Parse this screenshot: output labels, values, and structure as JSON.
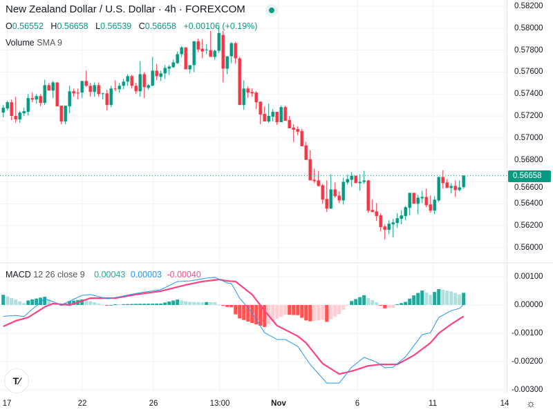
{
  "header": {
    "title": "New Zealand Dollar / U.S. Dollar · 4h · FOREXCOM",
    "ohlc": {
      "o_label": "O",
      "o": "0.56552",
      "h_label": "H",
      "h": "0.56658",
      "l_label": "L",
      "l": "0.56539",
      "c_label": "C",
      "c": "0.56658",
      "change": "+0.00106 (+0.19%)"
    },
    "volume_label": "Volume",
    "volume_sma": "SMA 9",
    "macd_label": "MACD",
    "macd_params": "12 26 close 9",
    "macd_hist_value": "0.00043",
    "macd_value": "0.00003",
    "macd_signal_value": "-0.00040"
  },
  "price_axis": [
    "0.58200",
    "0.58000",
    "0.57800",
    "0.57600",
    "0.57400",
    "0.57200",
    "0.57000",
    "0.56800",
    "0.56600",
    "0.56400",
    "0.56200",
    "0.56000"
  ],
  "last_price_label": "0.56658",
  "macd_axis": [
    "0.00100",
    "0.00000",
    "-0.00100",
    "-0.00200",
    "-0.00300"
  ],
  "time_axis": [
    "17",
    "22",
    "26",
    "13:00",
    "Nov",
    "6",
    "11",
    "14"
  ],
  "logo_text": "TV",
  "colors": {
    "up": "#089981",
    "down": "#f23645",
    "macd": "#2196f3",
    "signal": "#ff4081",
    "hist_up_strong": "#26a69a",
    "hist_up_weak": "#b2dfdb",
    "hist_down_strong": "#ff5252",
    "hist_down_weak": "#ffcdd2"
  },
  "chart_data": {
    "type": "candlestick",
    "title": "New Zealand Dollar / U.S. Dollar · 4h · FOREXCOM",
    "ylim": [
      0.56,
      0.582
    ],
    "last_close": 0.56658,
    "ohlc": [
      [
        0.57231,
        0.573,
        0.57188,
        0.57275
      ],
      [
        0.57269,
        0.57338,
        0.5725,
        0.57325
      ],
      [
        0.57325,
        0.5735,
        0.57163,
        0.572
      ],
      [
        0.572,
        0.57375,
        0.57138,
        0.57169
      ],
      [
        0.57169,
        0.57244,
        0.57138,
        0.57231
      ],
      [
        0.57225,
        0.57275,
        0.572,
        0.57244
      ],
      [
        0.57238,
        0.574,
        0.57206,
        0.57363
      ],
      [
        0.57363,
        0.57413,
        0.57325,
        0.5735
      ],
      [
        0.5735,
        0.574,
        0.57313,
        0.57381
      ],
      [
        0.57381,
        0.574,
        0.57288,
        0.57319
      ],
      [
        0.57319,
        0.57531,
        0.573,
        0.57481
      ],
      [
        0.57481,
        0.575,
        0.57431,
        0.57431
      ],
      [
        0.57431,
        0.57519,
        0.57363,
        0.57506
      ],
      [
        0.57506,
        0.57506,
        0.57288,
        0.57288
      ],
      [
        0.57294,
        0.57294,
        0.57125,
        0.5715
      ],
      [
        0.5715,
        0.57294,
        0.57125,
        0.57294
      ],
      [
        0.57288,
        0.57475,
        0.57225,
        0.57425
      ],
      [
        0.57425,
        0.5745,
        0.57375,
        0.57406
      ],
      [
        0.57413,
        0.5745,
        0.5735,
        0.57406
      ],
      [
        0.57413,
        0.57519,
        0.57363,
        0.57519
      ],
      [
        0.57519,
        0.57613,
        0.57463,
        0.57475
      ],
      [
        0.57475,
        0.575,
        0.57375,
        0.57419
      ],
      [
        0.57419,
        0.57506,
        0.57375,
        0.57481
      ],
      [
        0.57481,
        0.57506,
        0.57375,
        0.574
      ],
      [
        0.574,
        0.57413,
        0.5735,
        0.57406
      ],
      [
        0.57406,
        0.57438,
        0.5725,
        0.573
      ],
      [
        0.573,
        0.57475,
        0.57281,
        0.5745
      ],
      [
        0.5745,
        0.57525,
        0.57425,
        0.57444
      ],
      [
        0.57444,
        0.575,
        0.57413,
        0.57475
      ],
      [
        0.57475,
        0.57538,
        0.57444,
        0.57513
      ],
      [
        0.57513,
        0.57581,
        0.57475,
        0.57563
      ],
      [
        0.57563,
        0.57575,
        0.5745,
        0.57475
      ],
      [
        0.57475,
        0.575,
        0.574,
        0.57425
      ],
      [
        0.57425,
        0.577,
        0.57375,
        0.57581
      ],
      [
        0.57581,
        0.576,
        0.57363,
        0.57463
      ],
      [
        0.57456,
        0.57488,
        0.57438,
        0.57481
      ],
      [
        0.57475,
        0.57738,
        0.57475,
        0.57613
      ],
      [
        0.57613,
        0.57675,
        0.57525,
        0.57563
      ],
      [
        0.57556,
        0.57613,
        0.57519,
        0.57588
      ],
      [
        0.57588,
        0.57663,
        0.57538,
        0.57638
      ],
      [
        0.57631,
        0.57663,
        0.57575,
        0.5765
      ],
      [
        0.57644,
        0.57713,
        0.57638,
        0.57688
      ],
      [
        0.57681,
        0.57788,
        0.57675,
        0.57763
      ],
      [
        0.57763,
        0.57838,
        0.57738,
        0.57825
      ],
      [
        0.57825,
        0.57825,
        0.57625,
        0.57625
      ],
      [
        0.57625,
        0.57663,
        0.57588,
        0.57663
      ],
      [
        0.57663,
        0.57881,
        0.576,
        0.57881
      ],
      [
        0.57881,
        0.57906,
        0.57781,
        0.57806
      ],
      [
        0.57813,
        0.579,
        0.57725,
        0.57788
      ],
      [
        0.578,
        0.57856,
        0.57763,
        0.57806
      ],
      [
        0.578,
        0.57975,
        0.57738,
        0.57738
      ],
      [
        0.57738,
        0.57806,
        0.57713,
        0.57794
      ],
      [
        0.57794,
        0.58,
        0.57775,
        0.57956
      ],
      [
        0.57938,
        0.57975,
        0.57506,
        0.57631
      ],
      [
        0.57631,
        0.57744,
        0.57581,
        0.57744
      ],
      [
        0.57744,
        0.57875,
        0.57681,
        0.57863
      ],
      [
        0.57863,
        0.57875,
        0.57675,
        0.57725
      ],
      [
        0.57725,
        0.57738,
        0.573,
        0.573
      ],
      [
        0.573,
        0.57525,
        0.57256,
        0.5745
      ],
      [
        0.5745,
        0.57469,
        0.57363,
        0.57413
      ],
      [
        0.57419,
        0.5745,
        0.57375,
        0.57406
      ],
      [
        0.57413,
        0.57425,
        0.57263,
        0.57325
      ],
      [
        0.57331,
        0.57331,
        0.57125,
        0.57213
      ],
      [
        0.57219,
        0.57288,
        0.5715,
        0.5715
      ],
      [
        0.5715,
        0.57313,
        0.57138,
        0.572
      ],
      [
        0.57194,
        0.57263,
        0.5715,
        0.57238
      ],
      [
        0.57238,
        0.57238,
        0.57119,
        0.57144
      ],
      [
        0.57144,
        0.57294,
        0.57144,
        0.57281
      ],
      [
        0.57281,
        0.57294,
        0.57156,
        0.57156
      ],
      [
        0.57163,
        0.572,
        0.57088,
        0.57088
      ],
      [
        0.57094,
        0.57125,
        0.56963,
        0.57075
      ],
      [
        0.57081,
        0.57106,
        0.57025,
        0.57056
      ],
      [
        0.57063,
        0.57081,
        0.56925,
        0.56925
      ],
      [
        0.56931,
        0.56963,
        0.568,
        0.568
      ],
      [
        0.56806,
        0.56888,
        0.56613,
        0.56613
      ],
      [
        0.56619,
        0.56719,
        0.56588,
        0.56606
      ],
      [
        0.56613,
        0.567,
        0.56556,
        0.56563
      ],
      [
        0.56569,
        0.56581,
        0.564,
        0.56438
      ],
      [
        0.56444,
        0.56613,
        0.56325,
        0.56356
      ],
      [
        0.56356,
        0.56669,
        0.56356,
        0.56531
      ],
      [
        0.56531,
        0.56594,
        0.56456,
        0.56469
      ],
      [
        0.56475,
        0.56513,
        0.56406,
        0.56431
      ],
      [
        0.56431,
        0.56638,
        0.56394,
        0.566
      ],
      [
        0.56594,
        0.56663,
        0.56575,
        0.56625
      ],
      [
        0.56619,
        0.56688,
        0.56556,
        0.56656
      ],
      [
        0.56656,
        0.56656,
        0.56588,
        0.56588
      ],
      [
        0.56588,
        0.56669,
        0.56519,
        0.566
      ],
      [
        0.566,
        0.567,
        0.56581,
        0.56613
      ],
      [
        0.56613,
        0.56619,
        0.56319,
        0.56338
      ],
      [
        0.56344,
        0.56438,
        0.56325,
        0.56325
      ],
      [
        0.56331,
        0.56406,
        0.56244,
        0.56288
      ],
      [
        0.56294,
        0.56313,
        0.5615,
        0.56188
      ],
      [
        0.56194,
        0.56213,
        0.56075,
        0.56163
      ],
      [
        0.56163,
        0.5625,
        0.56125,
        0.56219
      ],
      [
        0.56213,
        0.56263,
        0.56094,
        0.56231
      ],
      [
        0.56225,
        0.56313,
        0.56181,
        0.56269
      ],
      [
        0.56263,
        0.56338,
        0.56213,
        0.56294
      ],
      [
        0.56288,
        0.56381,
        0.5625,
        0.56369
      ],
      [
        0.56363,
        0.565,
        0.56294,
        0.565
      ],
      [
        0.565,
        0.565,
        0.564,
        0.564
      ],
      [
        0.564,
        0.56481,
        0.56306,
        0.56456
      ],
      [
        0.5645,
        0.56519,
        0.56406,
        0.56463
      ],
      [
        0.56463,
        0.56538,
        0.56369,
        0.56388
      ],
      [
        0.56394,
        0.56475,
        0.56319,
        0.56338
      ],
      [
        0.56338,
        0.56469,
        0.56306,
        0.56438
      ],
      [
        0.56431,
        0.5665,
        0.56419,
        0.56644
      ],
      [
        0.56644,
        0.56706,
        0.56538,
        0.56588
      ],
      [
        0.56594,
        0.56625,
        0.56544,
        0.56544
      ],
      [
        0.56544,
        0.56588,
        0.56494,
        0.56563
      ],
      [
        0.56563,
        0.56613,
        0.56463,
        0.56525
      ],
      [
        0.56525,
        0.56613,
        0.56513,
        0.5655
      ],
      [
        0.56552,
        0.56658,
        0.56539,
        0.56658
      ]
    ],
    "macd_ylim": [
      -0.0031,
      0.0012
    ],
    "macd_keypoints": [
      [
        1,
        -0.0004
      ],
      [
        4,
        -0.00037
      ],
      [
        6,
        -0.00041
      ],
      [
        8,
        -0.00015
      ],
      [
        11,
        0.00022
      ],
      [
        13,
        0.00012
      ],
      [
        15,
        0
      ],
      [
        20,
        0.00034
      ],
      [
        22,
        0.00037
      ],
      [
        26,
        0.00022
      ],
      [
        29,
        0.00029
      ],
      [
        33,
        0.00041
      ],
      [
        39,
        0.00054
      ],
      [
        43,
        0.00083
      ],
      [
        46,
        0.00085
      ],
      [
        50,
        0.00095
      ],
      [
        52,
        0.00098
      ],
      [
        55,
        0.00078
      ],
      [
        56,
        0.00076
      ],
      [
        58,
        0.00024
      ],
      [
        61,
        -0.00027
      ],
      [
        64,
        -0.00098
      ],
      [
        67,
        -0.00122
      ],
      [
        69,
        -0.00122
      ],
      [
        72,
        -0.00146
      ],
      [
        75,
        -0.0021
      ],
      [
        79,
        -0.00276
      ],
      [
        82,
        -0.00276
      ],
      [
        85,
        -0.0022
      ],
      [
        88,
        -0.00185
      ],
      [
        91,
        -0.00202
      ],
      [
        93,
        -0.00222
      ],
      [
        95,
        -0.0022
      ],
      [
        98,
        -0.00183
      ],
      [
        102,
        -0.00105
      ],
      [
        104,
        -0.00098
      ],
      [
        106,
        -0.00044
      ],
      [
        109,
        -0.0002
      ],
      [
        111,
        -0.00012
      ],
      [
        112,
        3e-05
      ]
    ],
    "signal_keypoints": [
      [
        1,
        -0.00076
      ],
      [
        4,
        -0.00056
      ],
      [
        7,
        -0.00044
      ],
      [
        11,
        -7e-05
      ],
      [
        13,
        5e-05
      ],
      [
        17,
        0
      ],
      [
        22,
        0.00024
      ],
      [
        28,
        0.00024
      ],
      [
        33,
        0.00037
      ],
      [
        39,
        0.00049
      ],
      [
        45,
        0.00071
      ],
      [
        49,
        0.00083
      ],
      [
        53,
        0.0009
      ],
      [
        55,
        0.00085
      ],
      [
        57,
        0.00083
      ],
      [
        61,
        0.00037
      ],
      [
        64,
        -0.0002
      ],
      [
        67,
        -0.00073
      ],
      [
        72,
        -0.0011
      ],
      [
        74,
        -0.00134
      ],
      [
        78,
        -0.00207
      ],
      [
        82,
        -0.00244
      ],
      [
        85,
        -0.00234
      ],
      [
        89,
        -0.00215
      ],
      [
        92,
        -0.0021
      ],
      [
        96,
        -0.0021
      ],
      [
        100,
        -0.00178
      ],
      [
        104,
        -0.00134
      ],
      [
        106,
        -0.001
      ],
      [
        109,
        -0.00068
      ],
      [
        112,
        -0.0004
      ]
    ]
  }
}
